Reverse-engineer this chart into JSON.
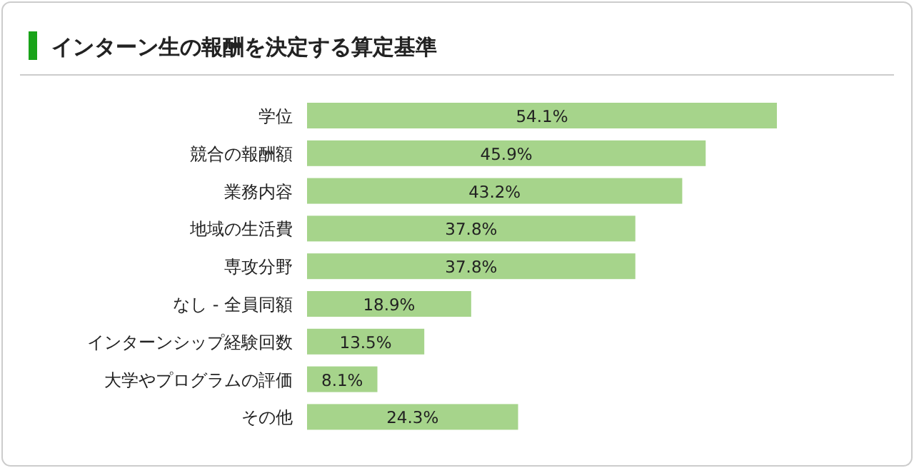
{
  "chart_data": {
    "type": "bar",
    "orientation": "horizontal",
    "title": "インターン生の報酬を決定する算定基準",
    "categories": [
      "学位",
      "競合の報酬額",
      "業務内容",
      "地域の生活費",
      "専攻分野",
      "なし - 全員同額",
      "インターンシップ経験回数",
      "大学やプログラムの評価",
      "その他"
    ],
    "values": [
      54.1,
      45.9,
      43.2,
      37.8,
      37.8,
      18.9,
      13.5,
      8.1,
      24.3
    ],
    "value_labels": [
      "54.1%",
      "45.9%",
      "43.2%",
      "37.8%",
      "37.8%",
      "18.9%",
      "13.5%",
      "8.1%",
      "24.3%"
    ],
    "color": "#a6d48b"
  }
}
